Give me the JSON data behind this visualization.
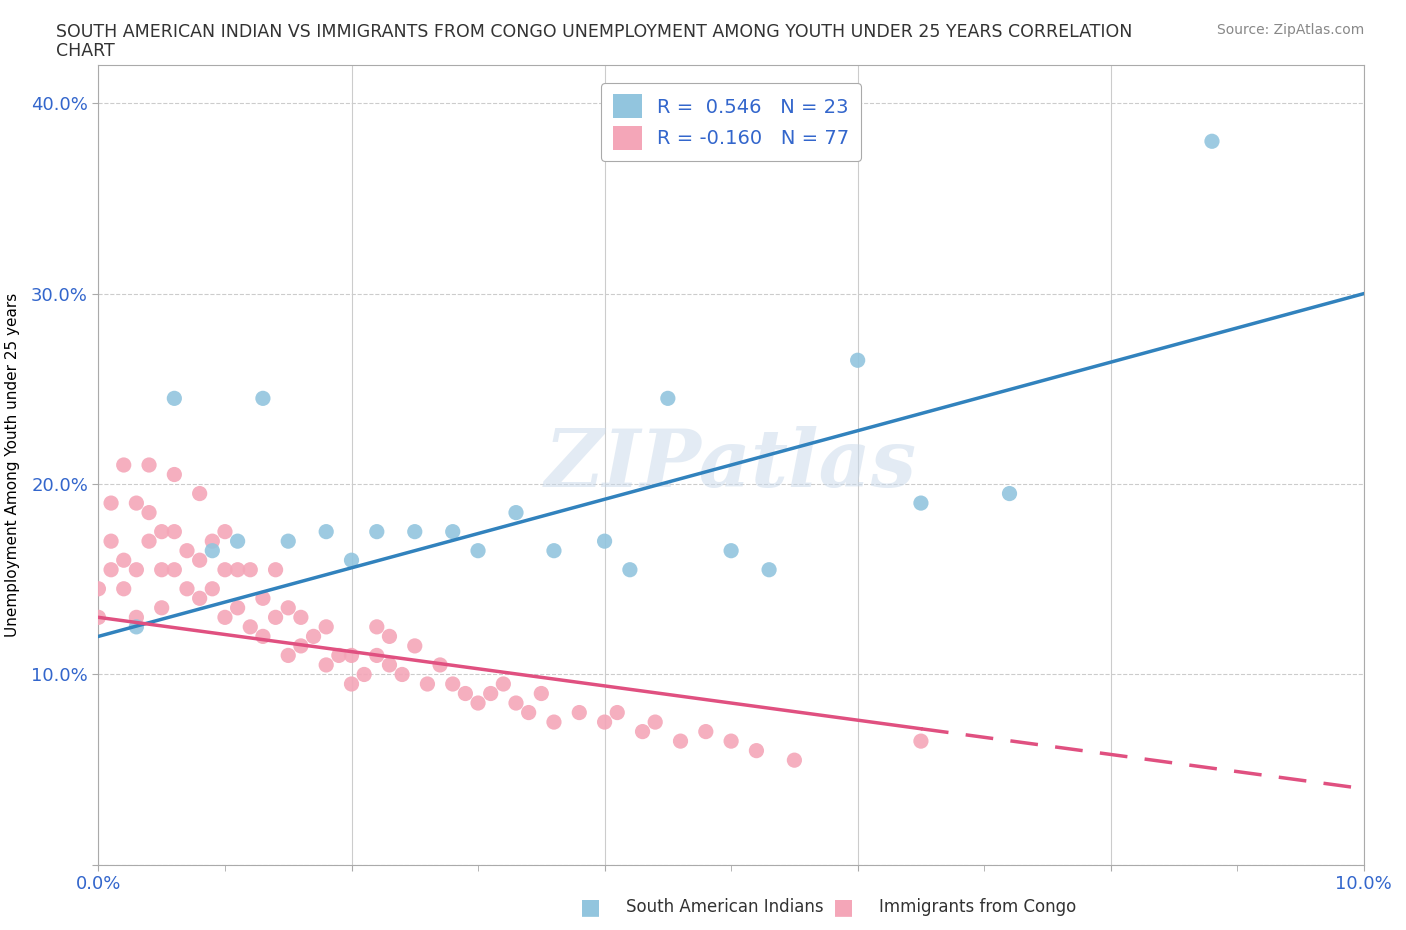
{
  "title_line1": "SOUTH AMERICAN INDIAN VS IMMIGRANTS FROM CONGO UNEMPLOYMENT AMONG YOUTH UNDER 25 YEARS CORRELATION",
  "title_line2": "CHART",
  "source": "Source: ZipAtlas.com",
  "ylabel": "Unemployment Among Youth under 25 years",
  "xlim": [
    0.0,
    0.1
  ],
  "ylim": [
    0.0,
    0.42
  ],
  "blue_color": "#92c5de",
  "pink_color": "#f4a6b8",
  "blue_line_color": "#3182bd",
  "pink_line_color": "#e05080",
  "R_blue": 0.546,
  "N_blue": 23,
  "R_pink": -0.16,
  "N_pink": 77,
  "watermark": "ZIPatlas",
  "blue_line_x0": 0.0,
  "blue_line_y0": 0.12,
  "blue_line_x1": 0.1,
  "blue_line_y1": 0.3,
  "pink_line_x0": 0.0,
  "pink_line_y0": 0.13,
  "pink_line_x1": 0.1,
  "pink_line_y1": 0.04,
  "blue_scatter_x": [
    0.003,
    0.006,
    0.009,
    0.011,
    0.013,
    0.015,
    0.018,
    0.02,
    0.022,
    0.025,
    0.028,
    0.03,
    0.033,
    0.036,
    0.04,
    0.042,
    0.045,
    0.05,
    0.053,
    0.06,
    0.065,
    0.072,
    0.088
  ],
  "blue_scatter_y": [
    0.125,
    0.245,
    0.165,
    0.17,
    0.245,
    0.17,
    0.175,
    0.16,
    0.175,
    0.175,
    0.175,
    0.165,
    0.185,
    0.165,
    0.17,
    0.155,
    0.245,
    0.165,
    0.155,
    0.265,
    0.19,
    0.195,
    0.38
  ],
  "pink_scatter_x": [
    0.0,
    0.0,
    0.001,
    0.001,
    0.001,
    0.002,
    0.002,
    0.002,
    0.003,
    0.003,
    0.003,
    0.004,
    0.004,
    0.004,
    0.005,
    0.005,
    0.005,
    0.006,
    0.006,
    0.006,
    0.007,
    0.007,
    0.008,
    0.008,
    0.008,
    0.009,
    0.009,
    0.01,
    0.01,
    0.01,
    0.011,
    0.011,
    0.012,
    0.012,
    0.013,
    0.013,
    0.014,
    0.014,
    0.015,
    0.015,
    0.016,
    0.016,
    0.017,
    0.018,
    0.018,
    0.019,
    0.02,
    0.02,
    0.021,
    0.022,
    0.022,
    0.023,
    0.023,
    0.024,
    0.025,
    0.026,
    0.027,
    0.028,
    0.029,
    0.03,
    0.031,
    0.032,
    0.033,
    0.034,
    0.035,
    0.036,
    0.038,
    0.04,
    0.041,
    0.043,
    0.044,
    0.046,
    0.048,
    0.05,
    0.052,
    0.055,
    0.065
  ],
  "pink_scatter_y": [
    0.13,
    0.145,
    0.155,
    0.17,
    0.19,
    0.145,
    0.16,
    0.21,
    0.13,
    0.155,
    0.19,
    0.17,
    0.185,
    0.21,
    0.135,
    0.155,
    0.175,
    0.155,
    0.175,
    0.205,
    0.145,
    0.165,
    0.14,
    0.16,
    0.195,
    0.145,
    0.17,
    0.13,
    0.155,
    0.175,
    0.135,
    0.155,
    0.125,
    0.155,
    0.12,
    0.14,
    0.13,
    0.155,
    0.11,
    0.135,
    0.115,
    0.13,
    0.12,
    0.105,
    0.125,
    0.11,
    0.095,
    0.11,
    0.1,
    0.11,
    0.125,
    0.105,
    0.12,
    0.1,
    0.115,
    0.095,
    0.105,
    0.095,
    0.09,
    0.085,
    0.09,
    0.095,
    0.085,
    0.08,
    0.09,
    0.075,
    0.08,
    0.075,
    0.08,
    0.07,
    0.075,
    0.065,
    0.07,
    0.065,
    0.06,
    0.055,
    0.065
  ]
}
